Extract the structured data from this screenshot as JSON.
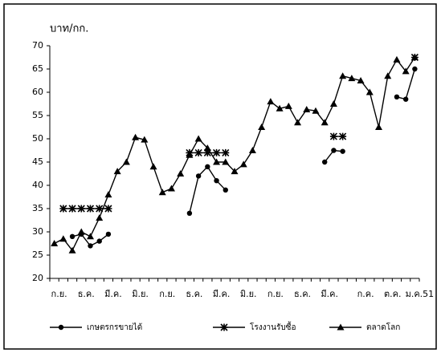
{
  "chart_data": {
    "type": "line",
    "y_label": "บาท/กก.",
    "categories": [
      "ก.ย.",
      null,
      null,
      "ธ.ค.",
      null,
      null,
      "มี.ค.",
      null,
      null,
      "มิ.ย.",
      null,
      null,
      "ก.ย.",
      null,
      null,
      "ธ.ค.",
      null,
      null,
      "มี.ค.",
      null,
      null,
      "มิ.ย.",
      null,
      null,
      "ก.ย.",
      null,
      null,
      "ธ.ค.",
      null,
      null,
      "มี.ค.",
      null,
      null,
      null,
      "ก.ค.",
      null,
      null,
      "ต.ค.",
      null,
      null,
      "ม.ค.51"
    ],
    "series": [
      {
        "name": "เกษตรกรขายได้",
        "color": "#000000",
        "marker": "circle",
        "values": [
          null,
          null,
          29,
          29.5,
          27,
          28,
          29.5,
          null,
          null,
          null,
          null,
          null,
          null,
          null,
          null,
          34,
          42,
          44,
          41,
          39,
          null,
          null,
          null,
          null,
          null,
          null,
          null,
          null,
          null,
          null,
          45,
          47.5,
          47.3,
          null,
          null,
          null,
          null,
          null,
          59,
          58.5,
          65
        ]
      },
      {
        "name": "โรงงานรับซื้อ",
        "color": "#000000",
        "marker": "star",
        "values": [
          null,
          35,
          35,
          35,
          35,
          35,
          35,
          null,
          null,
          null,
          null,
          null,
          null,
          null,
          null,
          47,
          47,
          47,
          47,
          47,
          null,
          null,
          null,
          null,
          null,
          null,
          null,
          null,
          null,
          null,
          null,
          50.5,
          50.5,
          null,
          null,
          null,
          null,
          null,
          null,
          null,
          67.5
        ]
      },
      {
        "name": "ตลาดโลก",
        "color": "#000000",
        "marker": "triangle",
        "values": [
          27.5,
          28.5,
          26,
          30,
          29,
          33,
          38,
          43,
          45,
          50.3,
          49.8,
          44,
          38.5,
          39.3,
          42.5,
          46.5,
          50,
          48,
          45,
          45,
          43,
          44.5,
          47.5,
          52.5,
          58,
          56.5,
          57,
          53.5,
          56.3,
          56,
          53.5,
          57.5,
          63.5,
          63,
          62.5,
          60,
          52.5,
          63.5,
          67,
          64.5,
          67.5
        ]
      }
    ],
    "ylim": [
      20,
      70
    ],
    "yticks": [
      20,
      25,
      30,
      35,
      40,
      45,
      50,
      55,
      60,
      65,
      70
    ]
  }
}
